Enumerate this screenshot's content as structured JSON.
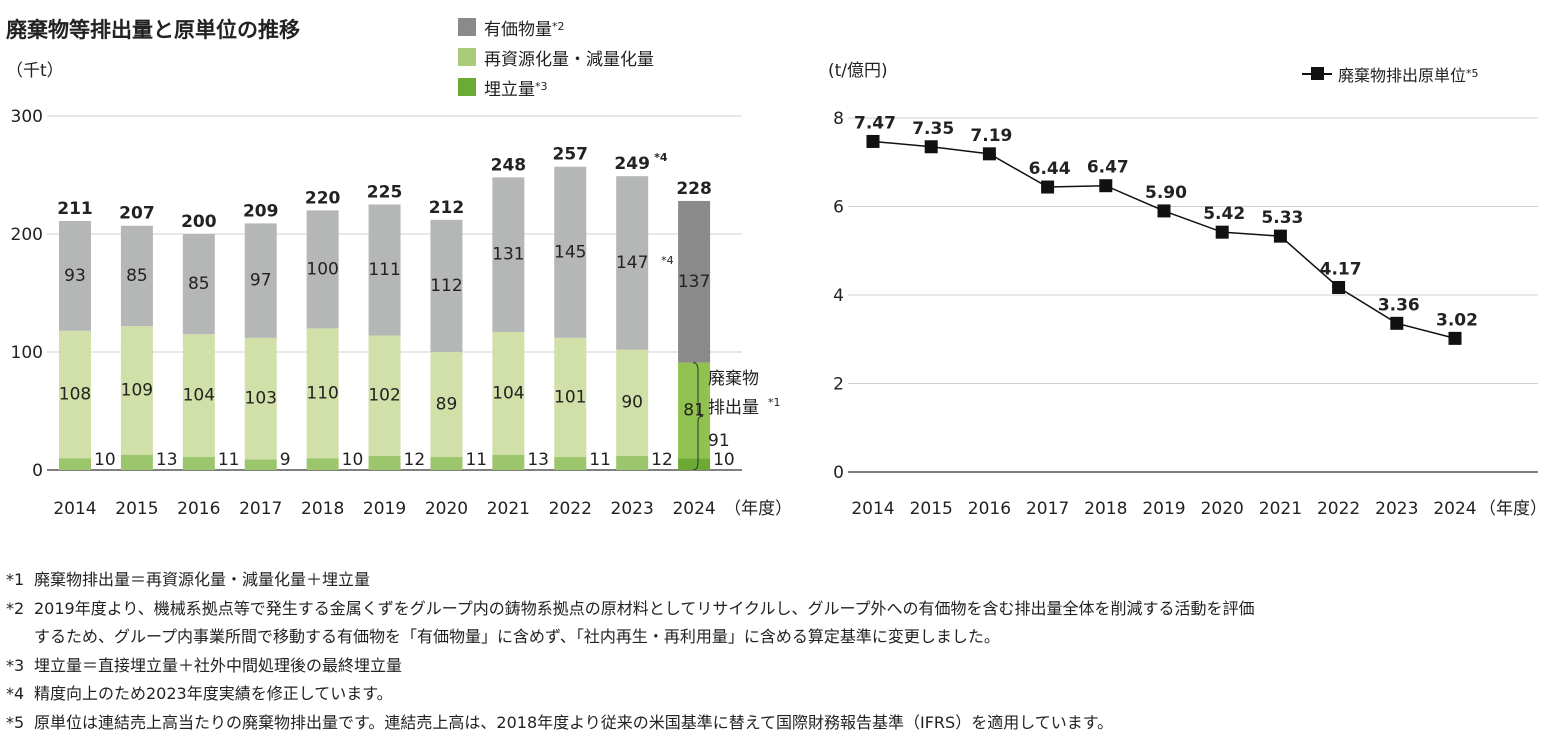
{
  "title": "廃棄物等排出量と原単位の推移",
  "left_unit": "（千t）",
  "right_unit": "(t/億円)",
  "year_suffix": "（年度）",
  "legend": {
    "valuables": {
      "label": "有価物量",
      "note": "*2"
    },
    "recycled": {
      "label": "再資源化量・減量化量"
    },
    "landfill": {
      "label": "埋立量",
      "note": "*3"
    },
    "intensity": {
      "label": "廃棄物排出原単位",
      "note": "*5"
    }
  },
  "bracket": {
    "line1": "廃棄物",
    "line2": "排出量",
    "note": "*1",
    "value": "91"
  },
  "colors": {
    "valuables": "#b5b6b6",
    "valuables_2024": "#8a8a8a",
    "recycled": "#d1e0a9",
    "recycled_2024": "#90c24f",
    "landfill": "#9cc66b",
    "landfill_2024": "#6aaa35",
    "gridline": "#d0d0d0",
    "line": "#111111"
  },
  "chart_data": [
    {
      "type": "bar",
      "stacked": true,
      "categories": [
        "2014",
        "2015",
        "2016",
        "2017",
        "2018",
        "2019",
        "2020",
        "2021",
        "2022",
        "2023",
        "2024"
      ],
      "series": [
        {
          "name": "埋立量",
          "values": [
            10,
            13,
            11,
            9,
            10,
            12,
            11,
            13,
            11,
            12,
            10
          ]
        },
        {
          "name": "再資源化量・減量化量",
          "values": [
            108,
            109,
            104,
            103,
            110,
            102,
            89,
            104,
            101,
            90,
            81
          ]
        },
        {
          "name": "有価物量",
          "values": [
            93,
            85,
            85,
            97,
            100,
            111,
            112,
            131,
            145,
            147,
            137
          ]
        }
      ],
      "totals": [
        211,
        207,
        200,
        209,
        220,
        225,
        212,
        248,
        257,
        249,
        228
      ],
      "total_notes": [
        "",
        "",
        "",
        "",
        "",
        "",
        "",
        "",
        "",
        "*4",
        ""
      ],
      "valuables_notes": [
        "",
        "",
        "",
        "",
        "",
        "",
        "",
        "",
        "",
        "*4",
        ""
      ],
      "ylim": [
        0,
        300
      ],
      "yticks": [
        0,
        100,
        200,
        300
      ],
      "grid": true
    },
    {
      "type": "line",
      "x": [
        "2014",
        "2015",
        "2016",
        "2017",
        "2018",
        "2019",
        "2020",
        "2021",
        "2022",
        "2023",
        "2024"
      ],
      "series": [
        {
          "name": "廃棄物排出原単位",
          "values": [
            7.47,
            7.35,
            7.19,
            6.44,
            6.47,
            5.9,
            5.42,
            5.33,
            4.17,
            3.36,
            3.02
          ]
        }
      ],
      "ylim": [
        0,
        8
      ],
      "yticks": [
        0,
        2,
        4,
        6,
        8
      ],
      "grid": true,
      "legend": "top-right"
    }
  ],
  "notes": [
    {
      "mark": "*1",
      "text": "廃棄物排出量＝再資源化量・減量化量＋埋立量"
    },
    {
      "mark": "*2",
      "text": "2019年度より、機械系拠点等で発生する金属くずをグループ内の鋳物系拠点の原材料としてリサイクルし、グループ外への有価物を含む排出量全体を削減する活動を評価",
      "cont": "するため、グループ内事業所間で移動する有価物を「有価物量」に含めず、「社内再生・再利用量」に含める算定基準に変更しました。"
    },
    {
      "mark": "*3",
      "text": "埋立量＝直接埋立量＋社外中間処理後の最終埋立量"
    },
    {
      "mark": "*4",
      "text": "精度向上のため2023年度実績を修正しています。"
    },
    {
      "mark": "*5",
      "text": "原単位は連結売上高当たりの廃棄物排出量です。連結売上高は、2018年度より従来の米国基準に替えて国際財務報告基準（IFRS）を適用しています。"
    }
  ]
}
